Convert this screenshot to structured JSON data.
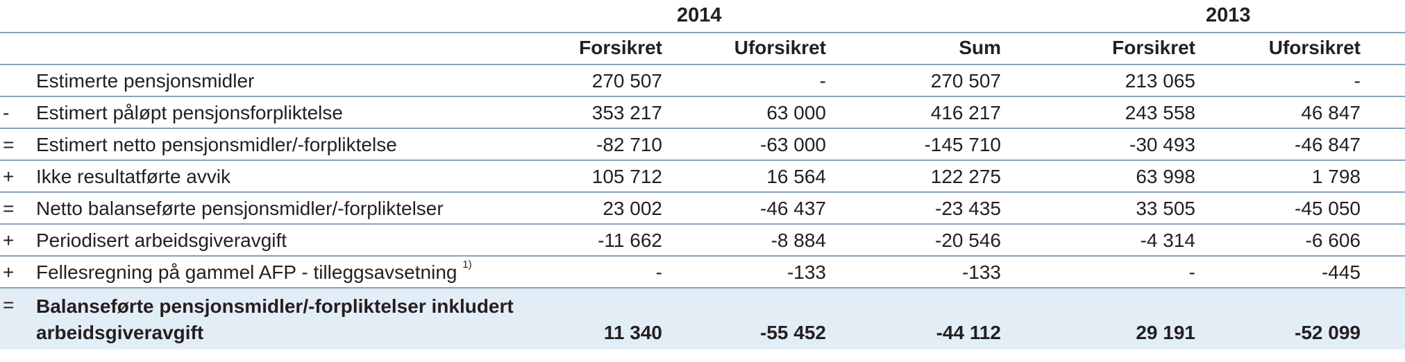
{
  "years": [
    "2014",
    "2013"
  ],
  "columns": [
    "Forsikret",
    "Uforsikret",
    "Sum",
    "Forsikret",
    "Uforsikret"
  ],
  "rows": [
    {
      "op": "",
      "label": "Estimerte pensjonsmidler",
      "note": "",
      "values": [
        "270 507",
        "-",
        "270 507",
        "213 065",
        "-"
      ]
    },
    {
      "op": "-",
      "label": "Estimert påløpt pensjonsforpliktelse",
      "note": "",
      "values": [
        "353 217",
        "63 000",
        "416 217",
        "243 558",
        "46 847"
      ]
    },
    {
      "op": "=",
      "label": "Estimert netto pensjonsmidler/-forpliktelse",
      "note": "",
      "values": [
        "-82 710",
        "-63 000",
        "-145 710",
        "-30 493",
        "-46 847"
      ]
    },
    {
      "op": "+",
      "label": "Ikke resultatførte avvik",
      "note": "",
      "values": [
        "105 712",
        "16 564",
        "122 275",
        "63 998",
        "1 798"
      ]
    },
    {
      "op": "=",
      "label": "Netto balanseførte pensjonsmidler/-forpliktelser",
      "note": "",
      "values": [
        "23 002",
        "-46 437",
        "-23 435",
        "33 505",
        "-45 050"
      ]
    },
    {
      "op": "+",
      "label": "Periodisert arbeidsgiveravgift",
      "note": "",
      "values": [
        "-11 662",
        "-8 884",
        "-20 546",
        "-4 314",
        "-6 606"
      ]
    },
    {
      "op": "+",
      "label": "Fellesregning på gammel AFP - tilleggsavsetning",
      "note": "1)",
      "values": [
        "-",
        "-133",
        "-133",
        "-",
        "-445"
      ]
    }
  ],
  "total": {
    "op": "=",
    "label": "Balanseførte pensjonsmidler/-forpliktelser inkludert arbeidsgiveravgift",
    "values": [
      "11 340",
      "-55 452",
      "-44 112",
      "29 191",
      "-52 099"
    ]
  }
}
